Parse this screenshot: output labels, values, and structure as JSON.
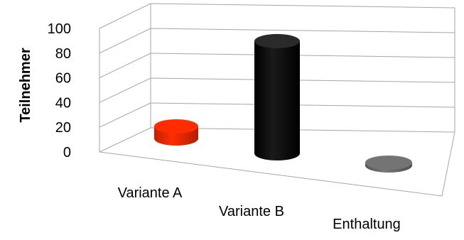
{
  "chart_data": {
    "type": "bar",
    "title": "",
    "xlabel": "",
    "ylabel": "Teilnehmer",
    "ylim": [
      0,
      100
    ],
    "yticks": [
      0,
      20,
      40,
      60,
      80,
      100
    ],
    "ytick_labels": [
      "0",
      "20",
      "40",
      "60",
      "80",
      "100"
    ],
    "grid": true,
    "legend": "none",
    "style": "3d-cylinder",
    "categories": [
      "Variante A",
      "Variante B",
      "Enthaltung"
    ],
    "values": [
      10,
      93,
      1
    ],
    "colors": [
      "#ff2a00",
      "#000000",
      "#6e6e6e"
    ]
  }
}
